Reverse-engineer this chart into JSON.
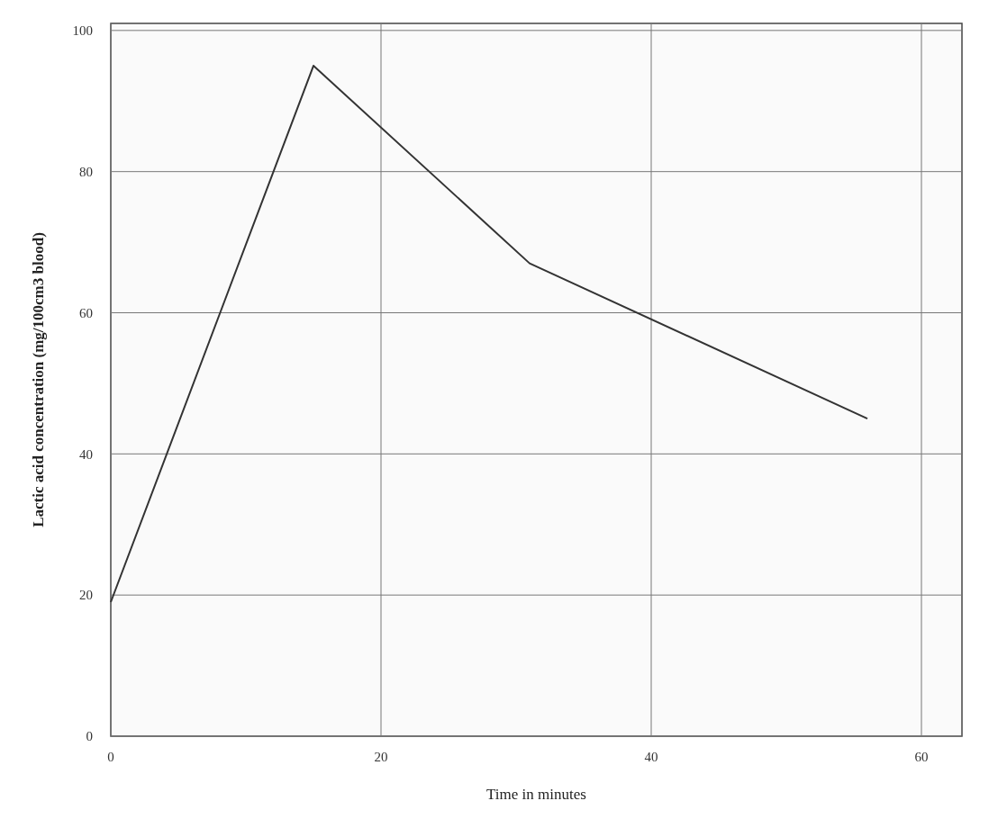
{
  "chart_data": {
    "type": "line",
    "xlabel": "Time in minutes",
    "ylabel": "Lactic acid concentration (mg/100cm3 blood)",
    "x": [
      0,
      15,
      31,
      56
    ],
    "series": [
      {
        "color": "#333333",
        "values": [
          19,
          95,
          67,
          45
        ]
      }
    ],
    "xlim": [
      0,
      63
    ],
    "ylim": [
      0,
      101
    ],
    "xticks": [
      0,
      20,
      40,
      60
    ],
    "yticks": [
      0,
      20,
      40,
      60,
      80,
      100
    ],
    "grid": true,
    "marker": "none",
    "line_style": "solid"
  }
}
